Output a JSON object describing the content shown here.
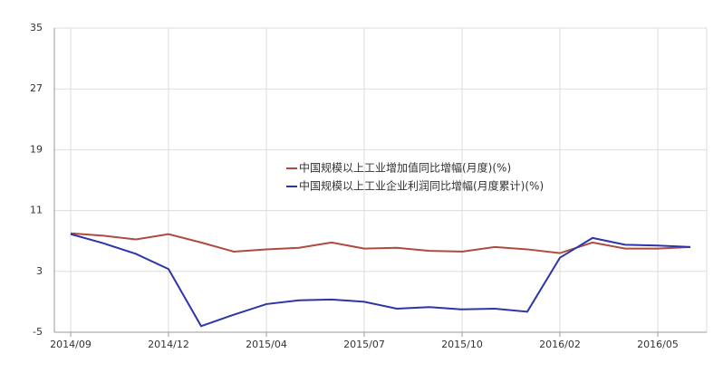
{
  "chart_data": {
    "type": "line",
    "categories": [
      "2014/09",
      null,
      null,
      "2014/12",
      null,
      null,
      "2015/04",
      null,
      null,
      "2015/07",
      null,
      null,
      "2015/10",
      null,
      null,
      "2016/02",
      null,
      null,
      "2016/05",
      null
    ],
    "series": [
      {
        "name": "中国规模以上工业增加值同比增幅(月度)(%)",
        "color": "#b04a3e",
        "values": [
          8.0,
          7.7,
          7.2,
          7.9,
          6.8,
          5.6,
          5.9,
          6.1,
          6.8,
          6.0,
          6.1,
          5.7,
          5.6,
          6.2,
          5.9,
          5.4,
          6.8,
          6.0,
          6.0,
          6.2
        ]
      },
      {
        "name": "中国规模以上工业企业利润同比增幅(月度累计)(%)",
        "color": "#2e35a8",
        "values": [
          7.9,
          6.7,
          5.3,
          3.3,
          -4.2,
          -2.7,
          -1.3,
          -0.8,
          -0.7,
          -1.0,
          -1.9,
          -1.7,
          -2.0,
          -1.9,
          -2.3,
          4.8,
          7.4,
          6.5,
          6.4,
          6.2
        ]
      }
    ],
    "ylim": [
      -5,
      35
    ],
    "yticks": [
      -5,
      3,
      11,
      19,
      27,
      35
    ],
    "grid": true
  }
}
